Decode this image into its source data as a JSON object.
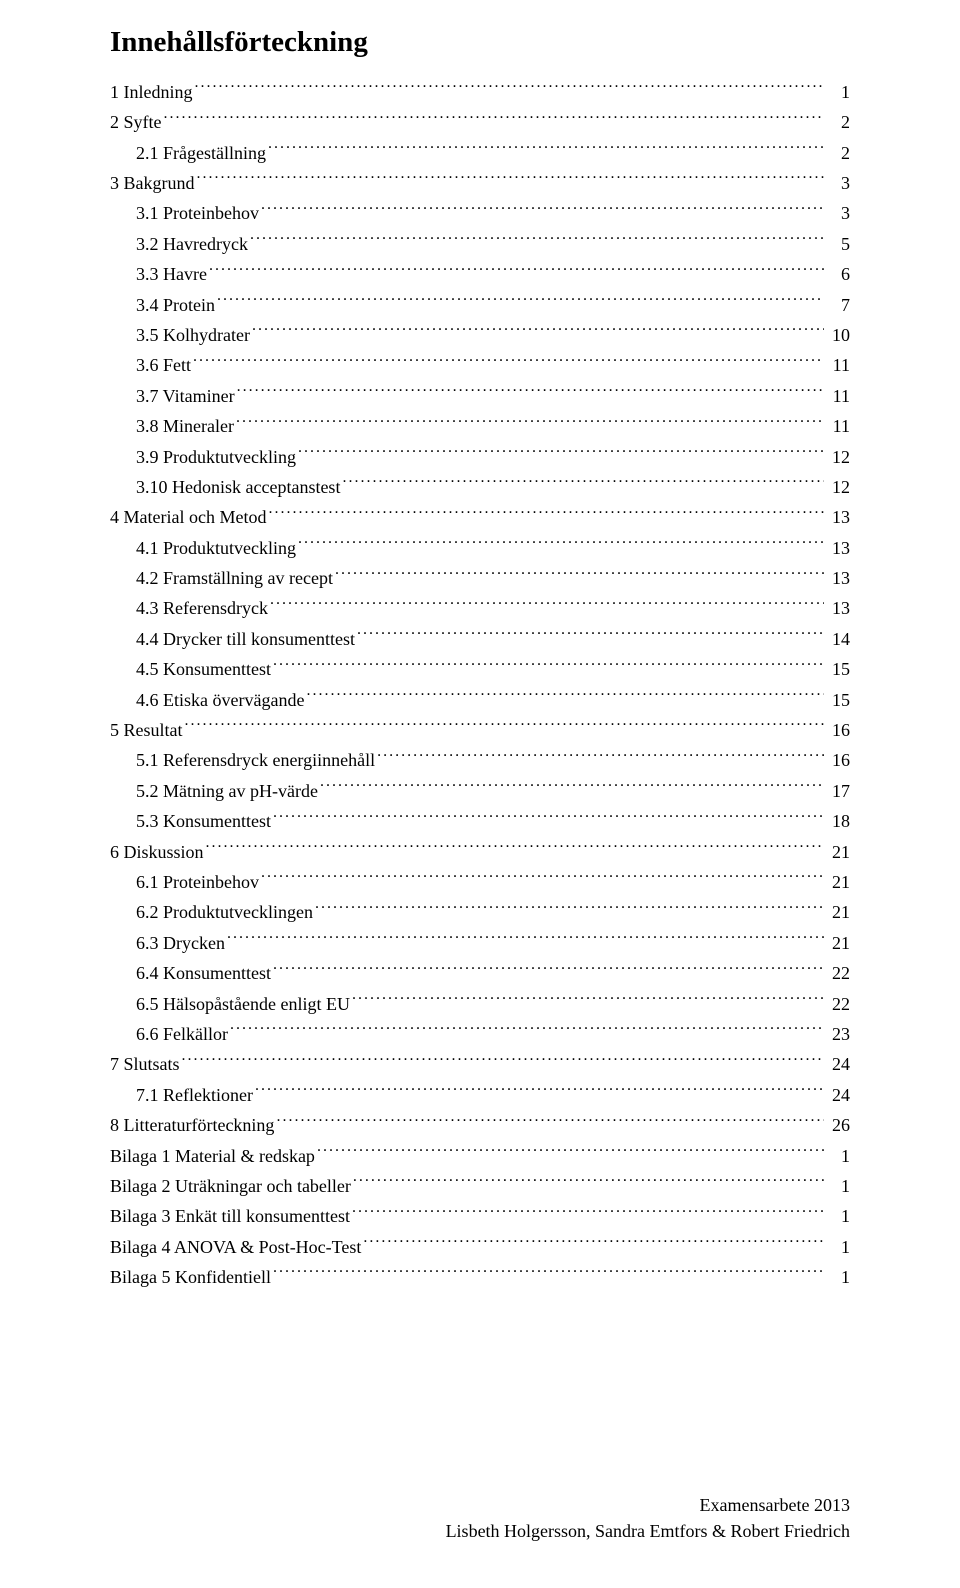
{
  "title": "Innehållsförteckning",
  "toc": [
    {
      "level": 1,
      "label": "1 Inledning",
      "page": "1"
    },
    {
      "level": 1,
      "label": "2 Syfte",
      "page": "2"
    },
    {
      "level": 2,
      "label": "2.1 Frågeställning",
      "page": "2"
    },
    {
      "level": 1,
      "label": "3 Bakgrund",
      "page": "3"
    },
    {
      "level": 2,
      "label": "3.1 Proteinbehov",
      "page": "3"
    },
    {
      "level": 2,
      "label": "3.2 Havredryck",
      "page": "5"
    },
    {
      "level": 2,
      "label": "3.3 Havre",
      "page": "6"
    },
    {
      "level": 2,
      "label": "3.4 Protein",
      "page": "7"
    },
    {
      "level": 2,
      "label": "3.5 Kolhydrater",
      "page": "10"
    },
    {
      "level": 2,
      "label": "3.6 Fett",
      "page": "11"
    },
    {
      "level": 2,
      "label": "3.7 Vitaminer",
      "page": "11"
    },
    {
      "level": 2,
      "label": "3.8 Mineraler",
      "page": "11"
    },
    {
      "level": 2,
      "label": "3.9 Produktutveckling",
      "page": "12"
    },
    {
      "level": 2,
      "label": "3.10 Hedonisk acceptanstest",
      "page": "12"
    },
    {
      "level": 1,
      "label": "4 Material och Metod",
      "page": "13"
    },
    {
      "level": 2,
      "label": "4.1 Produktutveckling",
      "page": "13"
    },
    {
      "level": 2,
      "label": "4.2 Framställning av recept",
      "page": "13"
    },
    {
      "level": 2,
      "label": "4.3 Referensdryck",
      "page": "13"
    },
    {
      "level": 2,
      "label": "4.4 Drycker till konsumenttest",
      "page": "14"
    },
    {
      "level": 2,
      "label": "4.5 Konsumenttest",
      "page": "15"
    },
    {
      "level": 2,
      "label": "4.6 Etiska övervägande",
      "page": "15"
    },
    {
      "level": 1,
      "label": "5 Resultat",
      "page": "16"
    },
    {
      "level": 2,
      "label": "5.1 Referensdryck energiinnehåll",
      "page": "16"
    },
    {
      "level": 2,
      "label": "5.2 Mätning av pH-värde",
      "page": "17"
    },
    {
      "level": 2,
      "label": "5.3 Konsumenttest",
      "page": "18"
    },
    {
      "level": 1,
      "label": "6 Diskussion",
      "page": "21"
    },
    {
      "level": 2,
      "label": "6.1 Proteinbehov",
      "page": "21"
    },
    {
      "level": 2,
      "label": "6.2 Produktutvecklingen",
      "page": "21"
    },
    {
      "level": 2,
      "label": "6.3 Drycken",
      "page": "21"
    },
    {
      "level": 2,
      "label": "6.4 Konsumenttest",
      "page": "22"
    },
    {
      "level": 2,
      "label": "6.5 Hälsopåstående enligt EU",
      "page": "22"
    },
    {
      "level": 2,
      "label": "6.6 Felkällor",
      "page": "23"
    },
    {
      "level": 1,
      "label": "7 Slutsats",
      "page": "24"
    },
    {
      "level": 2,
      "label": "7.1 Reflektioner",
      "page": "24"
    },
    {
      "level": 1,
      "label": "8 Litteraturförteckning",
      "page": "26"
    },
    {
      "level": 1,
      "label": "Bilaga 1 Material & redskap",
      "page": "1"
    },
    {
      "level": 1,
      "label": "Bilaga 2 Uträkningar och tabeller",
      "page": "1"
    },
    {
      "level": 1,
      "label": "Bilaga 3 Enkät till konsumenttest",
      "page": "1"
    },
    {
      "level": 1,
      "label": "Bilaga 4 ANOVA & Post-Hoc-Test",
      "page": "1"
    },
    {
      "level": 1,
      "label": "Bilaga 5 Konfidentiell",
      "page": "1"
    }
  ],
  "footer": {
    "line1": "Examensarbete 2013",
    "line2": "Lisbeth Holgersson, Sandra Emtfors & Robert Friedrich"
  }
}
